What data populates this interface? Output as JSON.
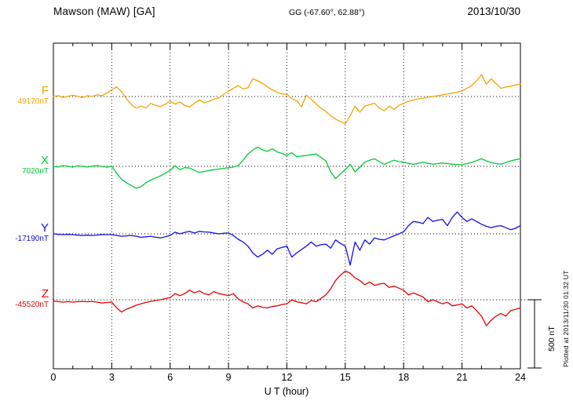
{
  "header": {
    "station": "Mawson (MAW)  [GA]",
    "coords": "GG (-67.60°,  62.88°)",
    "date": "2013/10/30"
  },
  "scale_bar": {
    "label": "500 nT",
    "nT": 500
  },
  "footer_note": "Plotted at 2013/11/30 01:32 UT",
  "chart_data": {
    "type": "line",
    "title": "Mawson (MAW) [GA] magnetogram",
    "date": "2013/10/30",
    "xlabel": "U T (hour)",
    "x_range": [
      0,
      24
    ],
    "x_step_hours": 0.25,
    "x_ticks": [
      0,
      3,
      6,
      9,
      12,
      15,
      18,
      21,
      24
    ],
    "scale_bar_nT": 500,
    "grid": "dotted vertical every 3h, dotted baseline per component",
    "series": [
      {
        "name": "F",
        "baseline_label": "49170nT",
        "baseline_nT": 49170,
        "color": "#f5a300",
        "values": [
          0,
          6,
          -6,
          2,
          10,
          2,
          -8,
          6,
          0,
          12,
          6,
          25,
          50,
          70,
          35,
          -15,
          -60,
          -85,
          -70,
          -85,
          -50,
          -65,
          -75,
          -55,
          -35,
          -55,
          -40,
          -65,
          -75,
          -50,
          -25,
          -45,
          -35,
          -20,
          -10,
          15,
          40,
          60,
          80,
          55,
          65,
          130,
          115,
          95,
          70,
          50,
          30,
          20,
          15,
          -15,
          -30,
          -75,
          10,
          -20,
          -55,
          -85,
          -110,
          -140,
          -165,
          -185,
          -200,
          -140,
          -70,
          -115,
          -70,
          -60,
          -50,
          -85,
          -105,
          -70,
          -95,
          -65,
          -50,
          -35,
          -25,
          -18,
          -12,
          -6,
          0,
          6,
          12,
          18,
          25,
          32,
          40,
          60,
          80,
          115,
          160,
          90,
          130,
          95,
          60,
          70,
          75,
          85,
          90
        ]
      },
      {
        "name": "X",
        "baseline_label": "7020nT",
        "baseline_nT": 7020,
        "color": "#00c936",
        "values": [
          0,
          -5,
          5,
          0,
          -6,
          4,
          0,
          -5,
          2,
          6,
          0,
          -6,
          0,
          -50,
          -95,
          -120,
          -140,
          -160,
          -150,
          -120,
          -100,
          -85,
          -70,
          -50,
          -30,
          5,
          -25,
          -10,
          -12,
          -30,
          -45,
          -38,
          -30,
          -25,
          -20,
          -15,
          -10,
          -5,
          5,
          45,
          90,
          120,
          140,
          120,
          110,
          130,
          105,
          95,
          80,
          100,
          70,
          75,
          80,
          85,
          90,
          65,
          40,
          -40,
          -90,
          -55,
          -25,
          15,
          -40,
          -5,
          30,
          45,
          55,
          35,
          15,
          30,
          45,
          35,
          30,
          22,
          15,
          22,
          30,
          22,
          15,
          20,
          25,
          20,
          16,
          14,
          12,
          20,
          28,
          42,
          55,
          40,
          28,
          20,
          15,
          28,
          40,
          48,
          55
        ]
      },
      {
        "name": "Y",
        "baseline_label": "-17190nT",
        "baseline_nT": -17190,
        "color": "#0f0fe6",
        "values": [
          0,
          -4,
          -6,
          -4,
          -6,
          -10,
          -12,
          -10,
          -12,
          -9,
          -6,
          -6,
          -6,
          -12,
          -18,
          -15,
          -12,
          -18,
          -25,
          -22,
          -18,
          -25,
          -30,
          -22,
          -12,
          12,
          0,
          10,
          18,
          6,
          18,
          14,
          12,
          6,
          0,
          4,
          6,
          -12,
          -40,
          -60,
          -90,
          -140,
          -170,
          -150,
          -120,
          -150,
          -110,
          -100,
          -90,
          -170,
          -140,
          -115,
          -90,
          -60,
          -90,
          -80,
          -75,
          -105,
          -45,
          -70,
          -90,
          -230,
          -60,
          -120,
          -45,
          -75,
          -30,
          -40,
          -45,
          -30,
          -15,
          0,
          15,
          60,
          90,
          85,
          75,
          120,
          90,
          100,
          105,
          60,
          120,
          160,
          120,
          90,
          110,
          90,
          70,
          55,
          45,
          55,
          60,
          45,
          30,
          40,
          60
        ]
      },
      {
        "name": "Z",
        "baseline_label": "-45520nT",
        "baseline_nT": -45520,
        "color": "#e60000",
        "values": [
          -10,
          -14,
          -18,
          -14,
          -18,
          -14,
          -12,
          -15,
          -12,
          -18,
          -24,
          -20,
          -18,
          -60,
          -90,
          -70,
          -55,
          -40,
          -30,
          -20,
          -12,
          -6,
          0,
          8,
          15,
          45,
          30,
          45,
          70,
          50,
          65,
          45,
          35,
          60,
          45,
          38,
          30,
          45,
          5,
          -15,
          -30,
          -60,
          -45,
          -55,
          -60,
          -50,
          -45,
          -35,
          -30,
          0,
          -15,
          -22,
          -30,
          -5,
          -15,
          10,
          35,
          80,
          140,
          180,
          210,
          195,
          160,
          140,
          110,
          130,
          105,
          115,
          120,
          90,
          100,
          85,
          70,
          35,
          50,
          35,
          20,
          -15,
          0,
          -15,
          -30,
          -18,
          -45,
          -38,
          -30,
          -60,
          -45,
          -80,
          -120,
          -190,
          -150,
          -120,
          -100,
          -120,
          -80,
          -70,
          -60
        ]
      }
    ]
  }
}
